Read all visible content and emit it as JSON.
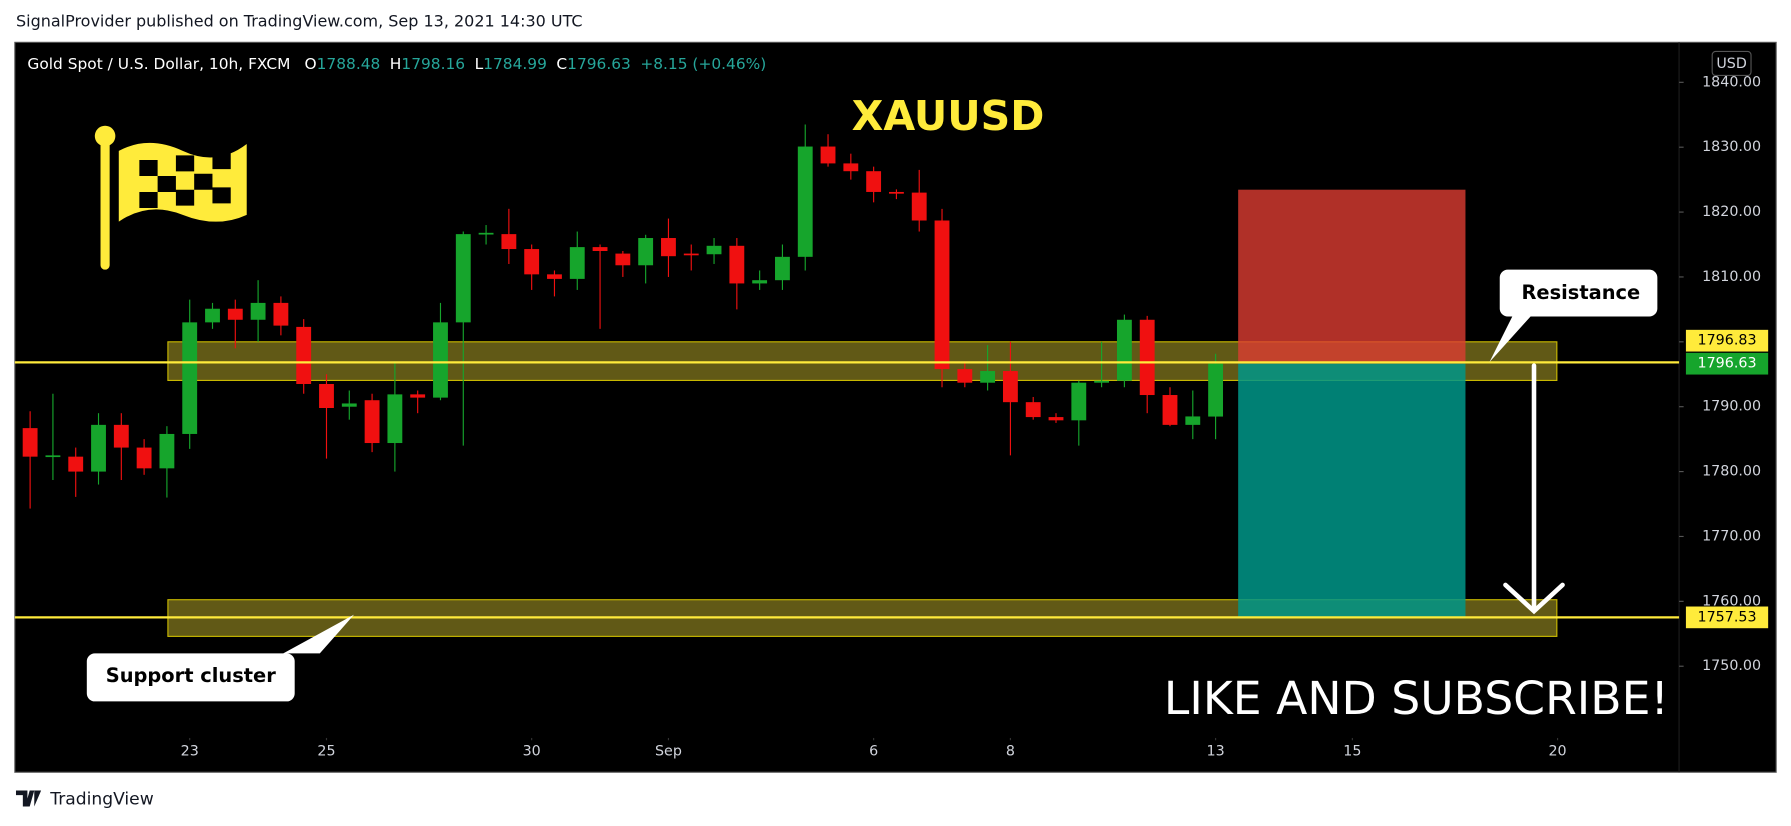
{
  "header": {
    "published": "SignalProvider published on TradingView.com, Sep 13, 2021 14:30 UTC",
    "brand": "TradingView"
  },
  "chart_data": {
    "type": "candlestick",
    "title": "Gold Spot / U.S. Dollar, 10h, FXCM",
    "ohlc_keys": [
      "O",
      "H",
      "L",
      "C"
    ],
    "change": "+8.15 (+0.46%)",
    "currency": "USD",
    "up_color": "#16a52c",
    "down_color": "#f01010",
    "open": [
      1786.7,
      1782.3,
      1782.3,
      1780.0,
      1787.2,
      1783.7,
      1780.5,
      1785.8,
      1803.0,
      1805.1,
      1803.4,
      1806.0,
      1802.3,
      1793.5,
      1790.0,
      1791.0,
      1784.4,
      1791.9,
      1791.4,
      1803.0,
      1816.6,
      1816.6,
      1814.3,
      1810.4,
      1809.7,
      1814.6,
      1813.6,
      1811.8,
      1816.0,
      1813.6,
      1813.5,
      1814.8,
      1809.0,
      1809.5,
      1813.1,
      1830.1,
      1827.5,
      1826.3,
      1823.1,
      1823.0,
      1818.7,
      1795.8,
      1793.7,
      1795.5,
      1790.7,
      1788.4,
      1787.9,
      1793.7,
      1794.0,
      1803.4,
      1791.8,
      1787.2,
      1788.48
    ],
    "high": [
      1789.3,
      1792,
      1783.7,
      1789,
      1789,
      1785,
      1787,
      1806.5,
      1806,
      1806.5,
      1809.5,
      1807,
      1803.5,
      1795,
      1792.5,
      1792,
      1797,
      1792.5,
      1806,
      1817,
      1818,
      1820.5,
      1815,
      1811,
      1817,
      1815,
      1814,
      1816.5,
      1819,
      1815,
      1816,
      1816,
      1811,
      1815,
      1833.5,
      1832,
      1829,
      1827,
      1823.5,
      1826.5,
      1820.5,
      1797,
      1799.5,
      1800,
      1791.5,
      1789,
      1794,
      1800,
      1804.2,
      1804,
      1793,
      1792.5,
      1798.16
    ],
    "low": [
      1774.3,
      1778.7,
      1776.1,
      1778,
      1778.7,
      1779.5,
      1776,
      1783.5,
      1802,
      1799,
      1800,
      1801,
      1792,
      1782,
      1788,
      1783,
      1780,
      1789,
      1791,
      1784,
      1815,
      1812,
      1808,
      1807,
      1808,
      1802,
      1810,
      1809,
      1810,
      1811,
      1812,
      1805,
      1808,
      1808,
      1811,
      1827,
      1825,
      1821.5,
      1822,
      1817,
      1793,
      1793,
      1792.5,
      1782.5,
      1788,
      1787.5,
      1784,
      1793,
      1793,
      1789,
      1787,
      1785,
      1784.99
    ],
    "close": [
      1782.3,
      1782.5,
      1780.0,
      1787.2,
      1783.7,
      1780.5,
      1785.8,
      1803.0,
      1805.1,
      1803.4,
      1806.0,
      1802.5,
      1793.5,
      1789.8,
      1790.5,
      1784.4,
      1791.9,
      1791.4,
      1803.0,
      1816.6,
      1816.8,
      1814.3,
      1810.4,
      1809.7,
      1814.6,
      1814.0,
      1811.8,
      1816.0,
      1813.2,
      1813.5,
      1814.8,
      1809.0,
      1809.5,
      1813.1,
      1830.1,
      1827.5,
      1826.3,
      1823.1,
      1823.0,
      1818.7,
      1795.8,
      1793.7,
      1795.5,
      1790.7,
      1788.4,
      1787.9,
      1793.7,
      1794.0,
      1803.4,
      1791.8,
      1787.2,
      1788.5,
      1796.63
    ],
    "xlim": [
      -0.67,
      72.33
    ],
    "xticks": [
      {
        "value": 7,
        "label": "23"
      },
      {
        "value": 13,
        "label": "25"
      },
      {
        "value": 22,
        "label": "30"
      },
      {
        "value": 28,
        "label": "Sep"
      },
      {
        "value": 37,
        "label": "6"
      },
      {
        "value": 43,
        "label": "8"
      },
      {
        "value": 52,
        "label": "13"
      },
      {
        "value": 58,
        "label": "15"
      },
      {
        "value": 67,
        "label": "20"
      }
    ],
    "ylim": [
      1733.66,
      1846.16
    ],
    "yticks": [
      {
        "value": 1750,
        "label": "1750.00"
      },
      {
        "value": 1760,
        "label": "1760.00"
      },
      {
        "value": 1770,
        "label": "1770.00"
      },
      {
        "value": 1780,
        "label": "1780.00"
      },
      {
        "value": 1790,
        "label": "1790.00"
      },
      {
        "value": 1800,
        "label": "1800.00"
      },
      {
        "value": 1810,
        "label": "1810.00"
      },
      {
        "value": 1820,
        "label": "1820.00"
      },
      {
        "value": 1830,
        "label": "1830.00"
      },
      {
        "value": 1840,
        "label": "1840.00"
      }
    ],
    "hlines": [
      {
        "value": 1796.83,
        "label": "1796.83"
      },
      {
        "value": 1757.53,
        "label": "1757.53"
      }
    ],
    "zones": [
      {
        "from": 1794.05,
        "to": 1800.0
      },
      {
        "from": 1754.6,
        "to": 1760.25
      }
    ],
    "position": {
      "stop": 1823.45,
      "entry": 1796.63,
      "target": 1757.53
    },
    "annotations": {
      "symbol": "XAUUSD",
      "resistance": "Resistance",
      "support": "Support cluster",
      "cta": "LIKE AND SUBSCRIBE!"
    }
  }
}
